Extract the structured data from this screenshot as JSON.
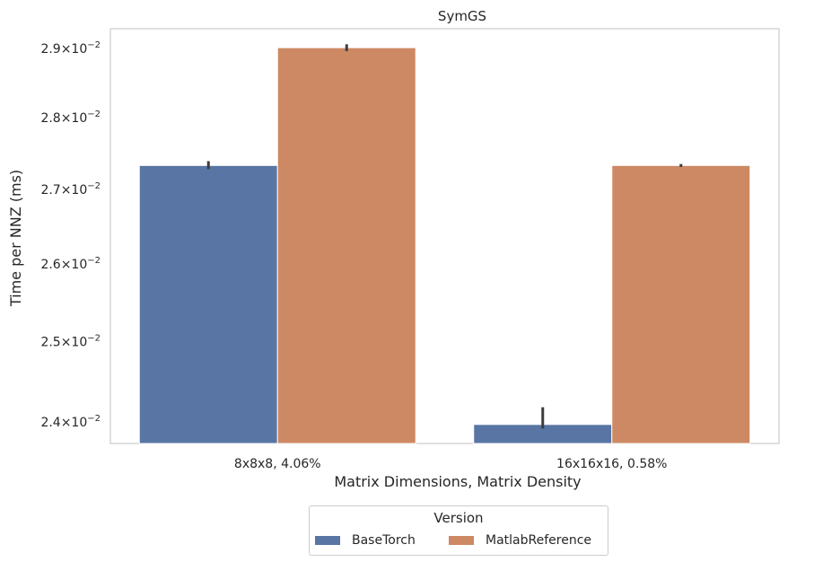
{
  "chart_data": {
    "type": "bar",
    "title": "SymGS",
    "xlabel": "Matrix Dimensions, Matrix Density",
    "ylabel": "Time per NNZ (ms)",
    "categories": [
      "8x8x8, 4.06%",
      "16x16x16, 0.58%"
    ],
    "yscale": "log",
    "ylim": [
      0.02374,
      0.02929
    ],
    "yticks": [
      0.024,
      0.025,
      0.026,
      0.027,
      0.028,
      0.029
    ],
    "ytick_labels": [
      {
        "mantissa": "2.4",
        "exp": "−2"
      },
      {
        "mantissa": "2.5",
        "exp": "−2"
      },
      {
        "mantissa": "2.6",
        "exp": "−2"
      },
      {
        "mantissa": "2.7",
        "exp": "−2"
      },
      {
        "mantissa": "2.8",
        "exp": "−2"
      },
      {
        "mantissa": "2.9",
        "exp": "−2"
      }
    ],
    "series": [
      {
        "name": "BaseTorch",
        "color": "#5875a4",
        "values": [
          0.02733,
          0.02397
        ],
        "err_low": [
          0.02728,
          0.02392
        ],
        "err_high": [
          0.02739,
          0.02418
        ]
      },
      {
        "name": "MatlabReference",
        "color": "#cc8963",
        "values": [
          0.02901,
          0.02733
        ],
        "err_low": [
          0.02896,
          0.02731
        ],
        "err_high": [
          0.02906,
          0.02735
        ]
      }
    ],
    "legend": {
      "title": "Version",
      "placement": "bottom-center"
    },
    "grid": false
  }
}
